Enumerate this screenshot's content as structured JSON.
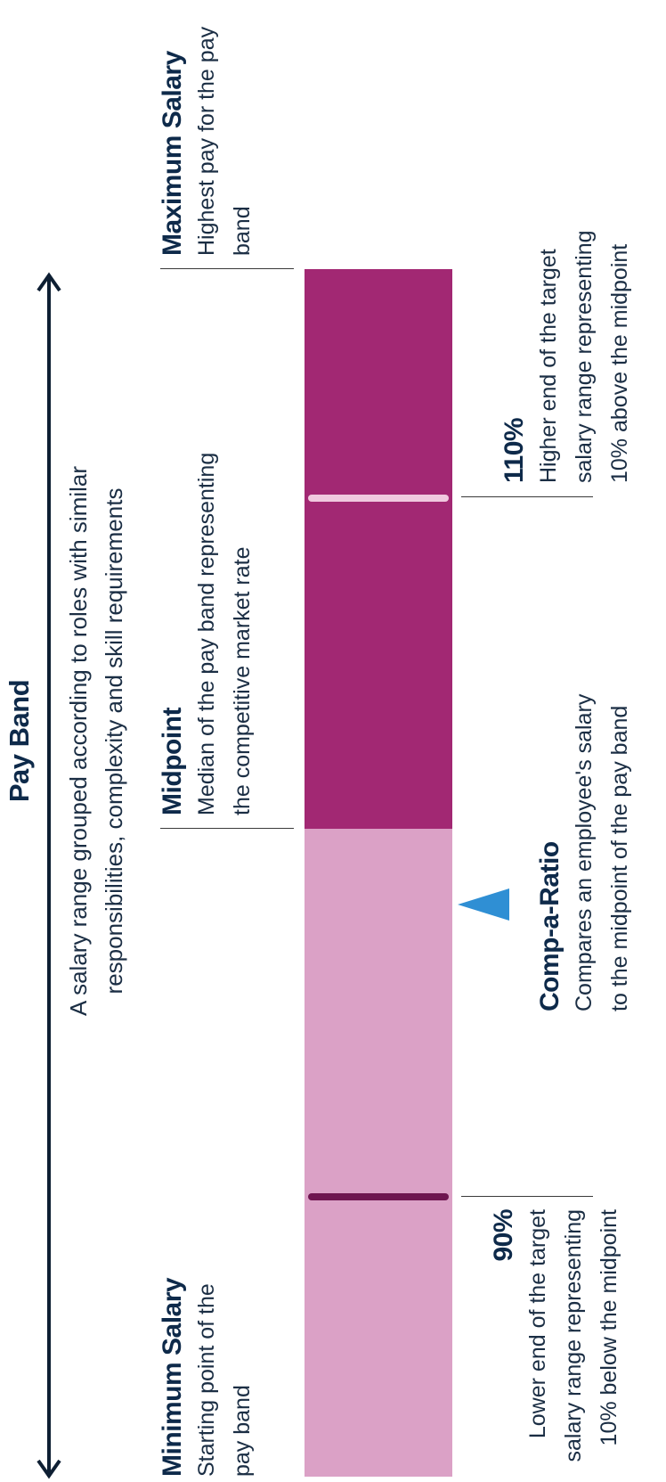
{
  "title": "Pay Band",
  "subtitle_line1": "A salary range grouped according to roles with similar",
  "subtitle_line2": "responsibilities, complexity and skill requirements",
  "labels": {
    "minimum": {
      "heading": "Minimum Salary",
      "line1": "Starting point of the",
      "line2": "pay band"
    },
    "midpoint": {
      "heading": "Midpoint",
      "line1": "Median of the pay band representing",
      "line2": "the competitive market rate"
    },
    "maximum": {
      "heading": "Maximum Salary",
      "line1": "Highest pay for the pay",
      "line2": "band"
    },
    "p90": {
      "heading": "90%",
      "line1": "Lower end of the target",
      "line2": "salary range representing",
      "line3": "10% below the midpoint"
    },
    "compa": {
      "heading": "Comp-a-Ratio",
      "line1": "Compares an employee's salary",
      "line2": "to the midpoint of the pay band"
    },
    "p110": {
      "heading": "110%",
      "line1": "Higher end of the target",
      "line2": "salary range representing",
      "line3": "10% above the midpoint"
    }
  },
  "colors": {
    "lower_half": "#dba1c6",
    "upper_half": "#a22873",
    "marker_90": "#6e1650",
    "marker_110": "#f0c9df",
    "comp_a_ratio_pointer": "#2f8fd4",
    "text_heading": "#0e2a4a",
    "arrow": "#0e1f33"
  },
  "icons": {
    "arrow": "double-headed-arrow-icon",
    "pointer": "triangle-pointer-icon"
  }
}
